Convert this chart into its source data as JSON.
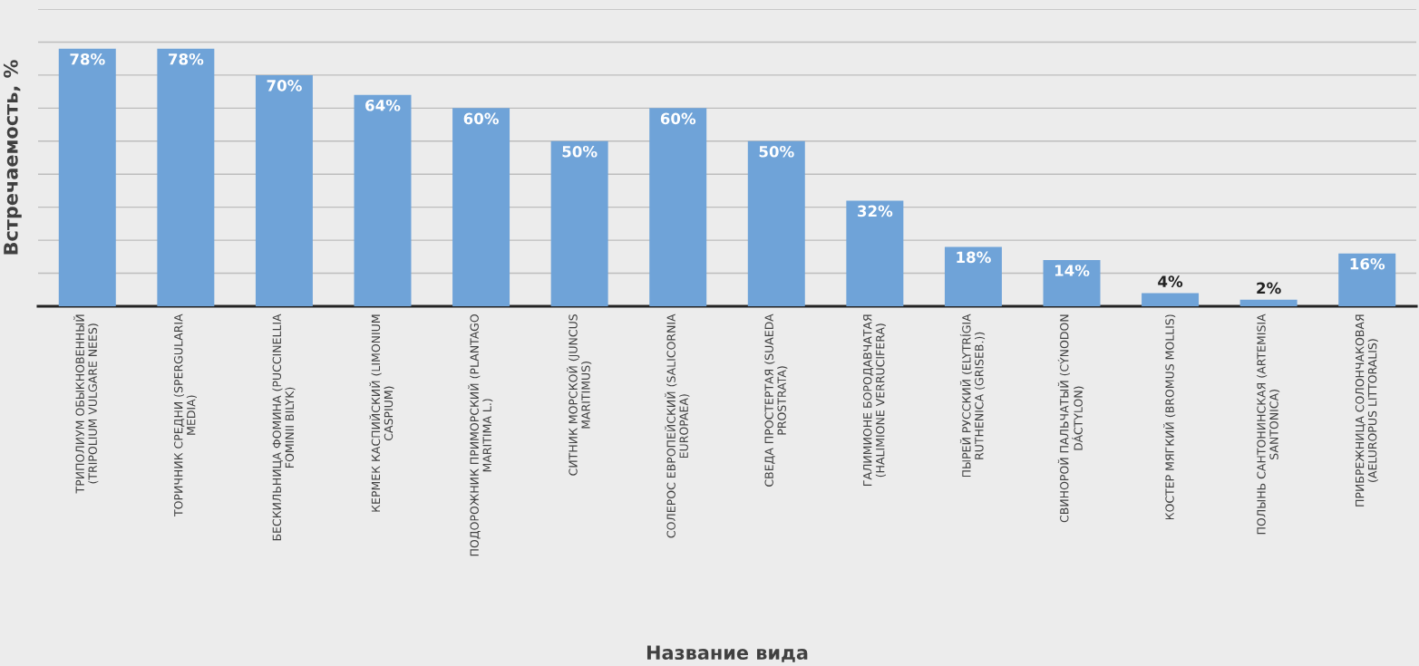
{
  "chart_data": {
    "type": "bar",
    "xlabel": "Название вида",
    "ylabel": "Встречаемость, %",
    "categories": [
      "ТРИПОЛИУМ ОБЫКНОВЕННЫЙ (TRIPOLIUM VULGARE NEES)",
      "ТОРИЧНИК СРЕДНИ (SPERGULARIA MEDIA)",
      "БЕСКИЛЬНИЦА ФОМИНА (PUCCINELLIA FOMINII BILYK)",
      "КЕРМЕК КАСПИЙСКИЙ (LIMONIUM CASPIUM)",
      "ПОДОРОЖНИК ПРИМОРСКИЙ (PLANTAGO MARITIMA L.)",
      "СИТНИК МОРСКОЙ (JUNCUS MARITIMUS)",
      "СОЛЕРОС ЕВРОПЕЙСКИЙ (SALICORNIA EUROPAEA)",
      "СВЕДА ПРОСТЕРТАЯ (SUAEDA PROSTRATA)",
      "ГАЛИМИОНЕ БОРОДАВЧАТАЯ (HALIMIONE VERRUCIFERA)",
      "ПЫРЕЙ РУССКИЙ (ELYTRÍGIA RUTHENICA (GRISEB.))",
      "СВИНОРОЙ ПАЛЬЧАТЫЙ (CÝNODON DÁCTYLON)",
      "КОСТЕР МЯГКИЙ (BROMUS MOLLIS)",
      "ПОЛЫНЬ САНТОНИНСКАЯ (ARTEMISIA SANTONICA)",
      "ПРИБРЕЖНИЦА СОЛОНЧАКОВАЯ (AELUROPUS LITTORALIS)"
    ],
    "values": [
      78,
      78,
      70,
      64,
      60,
      50,
      60,
      50,
      32,
      18,
      14,
      4,
      2,
      16
    ],
    "value_labels": [
      "78%",
      "78%",
      "70%",
      "64%",
      "60%",
      "50%",
      "60%",
      "50%",
      "32%",
      "18%",
      "14%",
      "4%",
      "2%",
      "16%"
    ],
    "color": "#6fa3d8",
    "ylim": [
      0,
      90
    ],
    "yticks": [
      {
        "value": 10,
        "label": null
      },
      {
        "value": 20,
        "label": null
      },
      {
        "value": 30,
        "label": null
      },
      {
        "value": 40,
        "label": null
      },
      {
        "value": 50,
        "label": null
      },
      {
        "value": 60,
        "label": null
      },
      {
        "value": 70,
        "label": null
      },
      {
        "value": 80,
        "label": null
      },
      {
        "value": 90,
        "label": null
      }
    ],
    "tick_labels": "x",
    "grid": "y"
  }
}
